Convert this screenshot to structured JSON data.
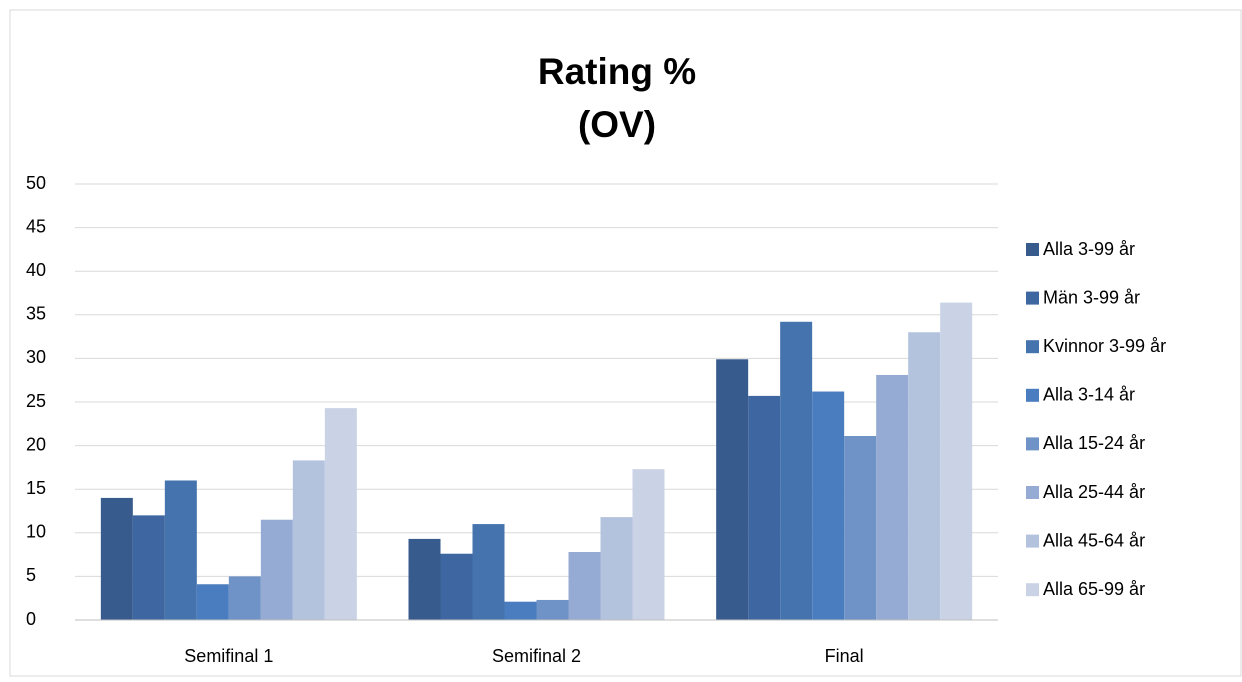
{
  "chart_data": {
    "type": "bar",
    "title": "Rating %",
    "subtitle": "(OV)",
    "categories": [
      "Semifinal 1",
      "Semifinal 2",
      "Final"
    ],
    "series": [
      {
        "name": "Alla 3-99 år",
        "color": "#375b8c",
        "values": [
          14.0,
          9.3,
          29.9
        ]
      },
      {
        "name": "Män 3-99 år",
        "color": "#3e66a0",
        "values": [
          12.0,
          7.6,
          25.7
        ]
      },
      {
        "name": "Kvinnor 3-99 år",
        "color": "#4573ad",
        "values": [
          16.0,
          11.0,
          34.2
        ]
      },
      {
        "name": "Alla 3-14 år",
        "color": "#4a7dbf",
        "values": [
          4.1,
          2.1,
          26.2
        ]
      },
      {
        "name": "Alla 15-24 år",
        "color": "#6f93c6",
        "values": [
          5.0,
          2.3,
          21.1
        ]
      },
      {
        "name": "Alla 25-44 år",
        "color": "#95abd3",
        "values": [
          11.5,
          7.8,
          28.1
        ]
      },
      {
        "name": "Alla 45-64 år",
        "color": "#b3c3de",
        "values": [
          18.3,
          11.8,
          33.0
        ]
      },
      {
        "name": "Alla 65-99 år",
        "color": "#cad3e6",
        "values": [
          24.3,
          17.3,
          36.4
        ]
      }
    ],
    "ylim": [
      0,
      50
    ],
    "yticks": [
      0,
      5,
      10,
      15,
      20,
      25,
      30,
      35,
      40,
      45,
      50
    ],
    "grid": true,
    "legend": "right"
  }
}
